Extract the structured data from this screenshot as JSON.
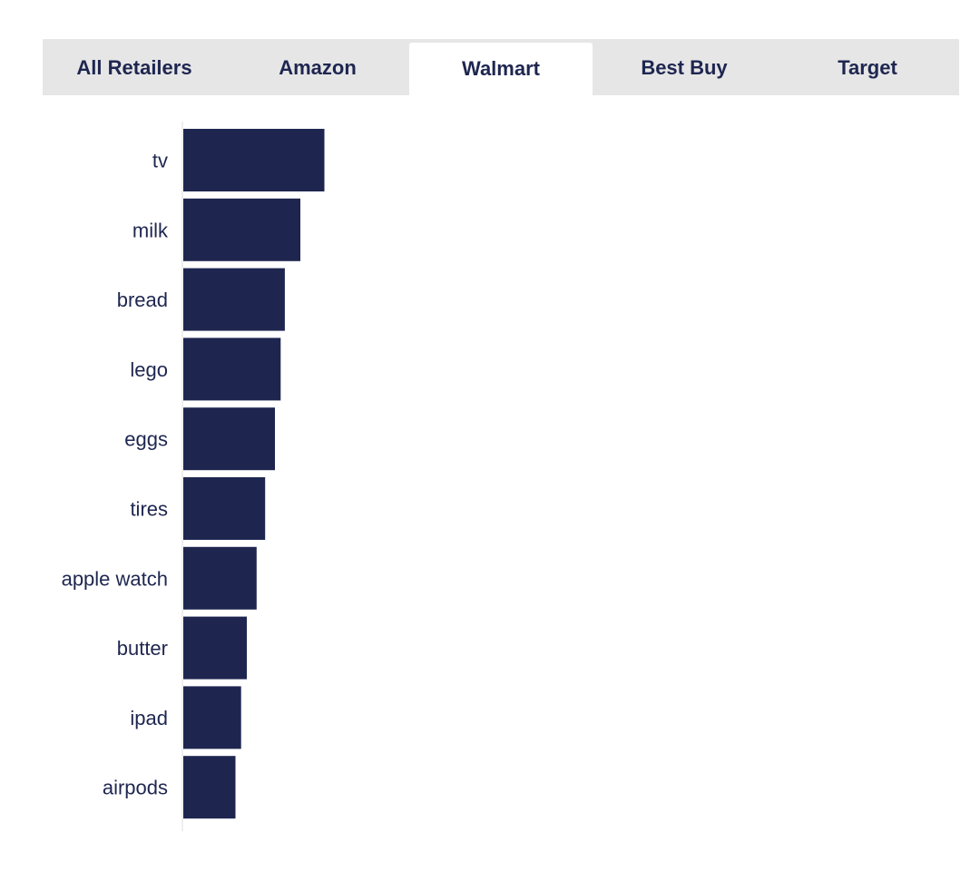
{
  "tabs": [
    {
      "label": "All Retailers",
      "active": false
    },
    {
      "label": "Amazon",
      "active": false
    },
    {
      "label": "Walmart",
      "active": true
    },
    {
      "label": "Best Buy",
      "active": false
    },
    {
      "label": "Target",
      "active": false
    }
  ],
  "chart_data": {
    "type": "bar",
    "orientation": "horizontal",
    "categories": [
      "tv",
      "milk",
      "bread",
      "lego",
      "eggs",
      "tires",
      "apple watch",
      "butter",
      "ipad",
      "airpods"
    ],
    "values": [
      100,
      83,
      72,
      69,
      65,
      58,
      52,
      45,
      41,
      37
    ],
    "xlim": [
      0,
      550
    ],
    "bar_color": "#1e2650",
    "axis_color": "#dcdcdc",
    "grid": false,
    "title": "",
    "xlabel": "",
    "ylabel": ""
  }
}
